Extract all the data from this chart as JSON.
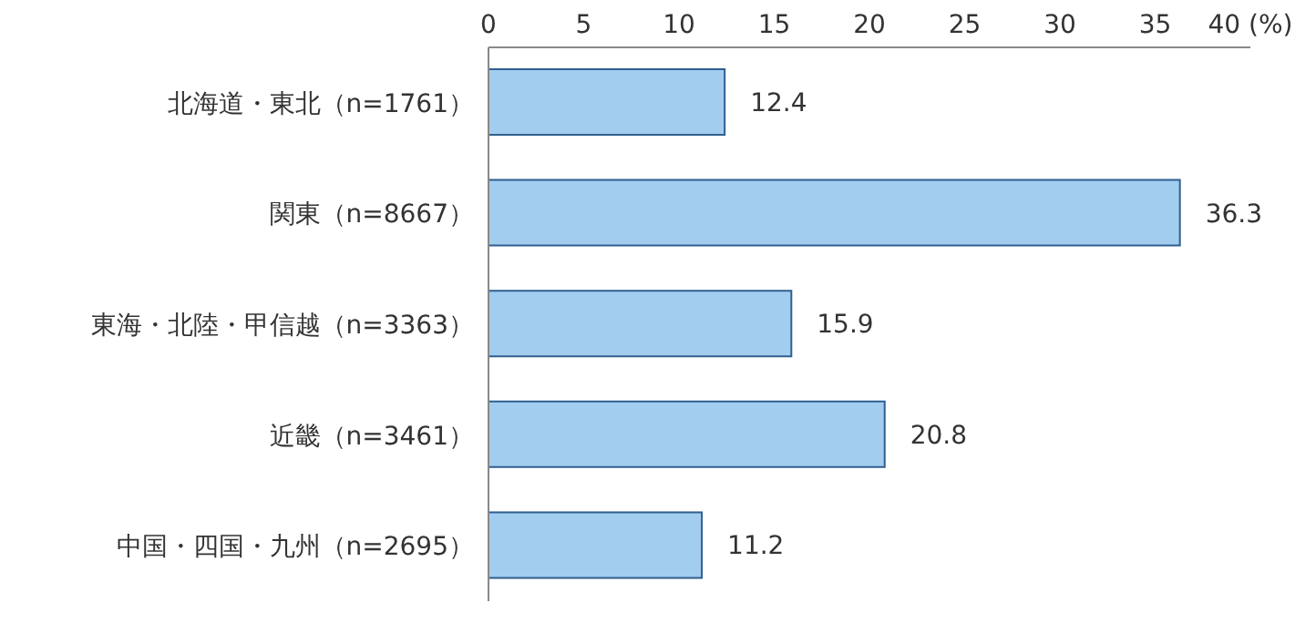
{
  "chart_data": {
    "type": "bar",
    "orientation": "horizontal",
    "categories": [
      "北海道・東北（n=1761）",
      "関東（n=8667）",
      "東海・北陸・甲信越（n=3363）",
      "近畿（n=3461）",
      "中国・四国・九州（n=2695）"
    ],
    "values": [
      12.4,
      36.3,
      15.9,
      20.8,
      11.2
    ],
    "color": "#a3cdef",
    "xlim": [
      0,
      40
    ],
    "xticks": [
      0,
      5,
      10,
      15,
      20,
      25,
      30,
      35,
      {
        "value": 40,
        "label": "40 (%)"
      }
    ],
    "data_labels": true,
    "grid": false,
    "legend": false
  }
}
